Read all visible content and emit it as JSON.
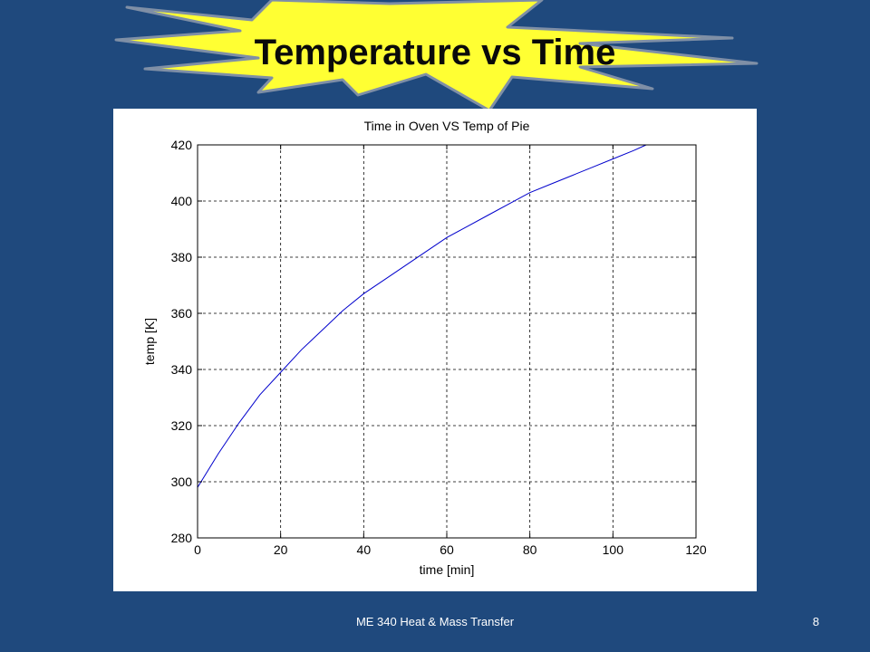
{
  "slide": {
    "title": "Temperature vs Time",
    "footer": "ME 340 Heat & Mass Transfer",
    "page_number": "8",
    "colors": {
      "background": "#1f497d",
      "burst_fill": "#ffff33",
      "burst_stroke": "#7f8fa6",
      "plot_bg": "#ffffff",
      "line": "#0000cc",
      "grid": "#000000"
    }
  },
  "chart_data": {
    "type": "line",
    "title": "Time in Oven VS Temp of Pie",
    "xlabel": "time [min]",
    "ylabel": "temp [K]",
    "xlim": [
      0,
      120
    ],
    "ylim": [
      280,
      420
    ],
    "xticks": [
      0,
      20,
      40,
      60,
      80,
      100,
      120
    ],
    "yticks": [
      280,
      300,
      320,
      340,
      360,
      380,
      400,
      420
    ],
    "xtick_labels": [
      "0",
      "20",
      "40",
      "60",
      "80",
      "100",
      "120"
    ],
    "ytick_labels": [
      "280",
      "300",
      "320",
      "340",
      "360",
      "380",
      "400",
      "420"
    ],
    "grid": true,
    "grid_style": "dashed",
    "series": [
      {
        "color": "#0000cc",
        "x": [
          0,
          5,
          10,
          15,
          20,
          25,
          30,
          35,
          40,
          45,
          50,
          55,
          60,
          65,
          70,
          75,
          80,
          85,
          90,
          95,
          100,
          105,
          108
        ],
        "y": [
          298,
          310,
          321,
          331,
          339,
          347,
          354,
          361,
          367,
          372,
          377,
          382,
          387,
          391,
          395,
          399,
          403,
          406,
          409,
          412,
          415,
          418,
          420
        ]
      }
    ]
  }
}
